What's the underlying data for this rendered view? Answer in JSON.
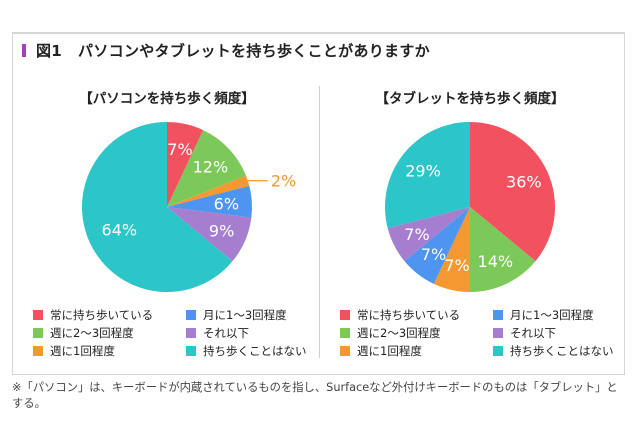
{
  "title": {
    "figure_number": "図1",
    "text": "パソコンやタブレットを持ち歩くことがありますか",
    "accent_color": "#a63fbf"
  },
  "categories": [
    {
      "key": "always",
      "label": "常に持ち歩いている",
      "color": "#f2525f"
    },
    {
      "key": "weekly_2_3",
      "label": "週に2〜3回程度",
      "color": "#7cc95a"
    },
    {
      "key": "weekly_1",
      "label": "週に1回程度",
      "color": "#f5982f"
    },
    {
      "key": "monthly_1_3",
      "label": "月に1〜3回程度",
      "color": "#4e95f0"
    },
    {
      "key": "less",
      "label": "それ以下",
      "color": "#a57ed0"
    },
    {
      "key": "never",
      "label": "持ち歩くことはない",
      "color": "#2cc5c8"
    }
  ],
  "chart_data": [
    {
      "type": "pie",
      "title": "【パソコンを持ち歩く頻度】",
      "categories": [
        "常に持ち歩いている",
        "週に2〜3回程度",
        "週に1回程度",
        "月に1〜3回程度",
        "それ以下",
        "持ち歩くことはない"
      ],
      "values": [
        7,
        12,
        2,
        6,
        9,
        64
      ],
      "labels": [
        "7%",
        "12%",
        "2%",
        "6%",
        "9%",
        "64%"
      ],
      "unit": "%",
      "start": "top",
      "direction": "clockwise",
      "outside_labels": [
        2
      ]
    },
    {
      "type": "pie",
      "title": "【タブレットを持ち歩く頻度】",
      "categories": [
        "常に持ち歩いている",
        "週に2〜3回程度",
        "週に1回程度",
        "月に1〜3回程度",
        "それ以下",
        "持ち歩くことはない"
      ],
      "values": [
        36,
        14,
        7,
        7,
        7,
        29
      ],
      "labels": [
        "36%",
        "14%",
        "7%",
        "7%",
        "7%",
        "29%"
      ],
      "unit": "%",
      "start": "top",
      "direction": "clockwise",
      "outside_labels": []
    }
  ],
  "legend_order": [
    0,
    3,
    1,
    4,
    2,
    5
  ],
  "footnote": "※「パソコン」は、キーボードが内蔵されているものを指し、Surfaceなど外付けキーボードのものは「タブレット」とする。"
}
